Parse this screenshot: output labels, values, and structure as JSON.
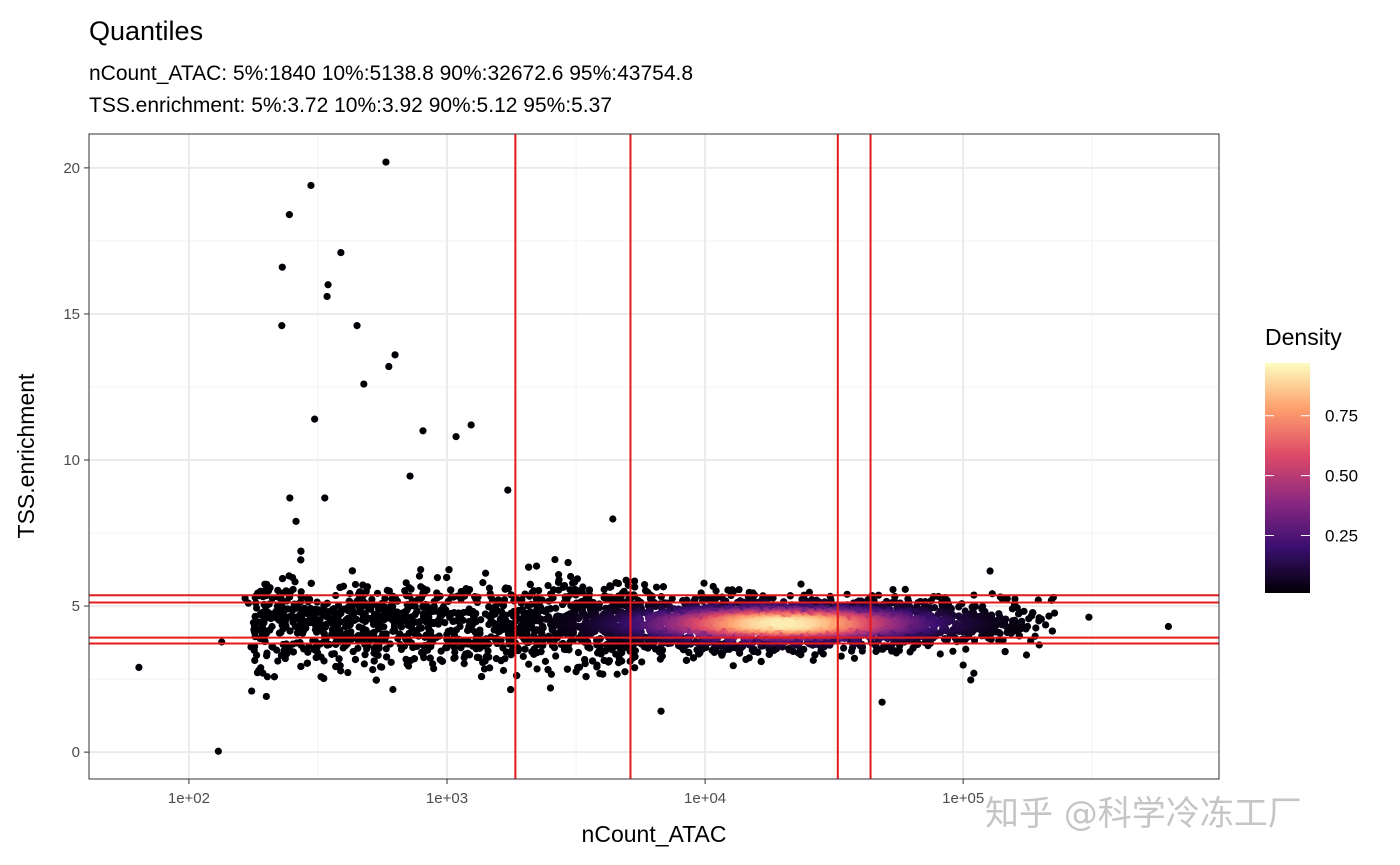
{
  "chart_data": {
    "type": "scatter",
    "title": "Quantiles",
    "subtitle_lines": [
      "nCount_ATAC: 5%:1840 10%:5138.8 90%:32672.6 95%:43754.8",
      "TSS.enrichment: 5%:3.72 10%:3.92 90%:5.12 95%:5.37"
    ],
    "xlabel": "nCount_ATAC",
    "ylabel": "TSS.enrichment",
    "x_scale": "log10",
    "xlim": [
      41,
      980000
    ],
    "ylim": [
      -0.92,
      21.16
    ],
    "x_ticks": [
      100,
      1000,
      10000,
      100000
    ],
    "x_tick_labels": [
      "1e+02",
      "1e+03",
      "1e+04",
      "1e+05"
    ],
    "y_ticks": [
      0,
      5,
      10,
      15,
      20
    ],
    "y_tick_labels": [
      "0",
      "5",
      "10",
      "15",
      "20"
    ],
    "grid": true,
    "vlines": [
      1840,
      5138.8,
      32672.6,
      43754.8
    ],
    "hlines": [
      3.72,
      3.92,
      5.12,
      5.37
    ],
    "line_color": "#e41a1c",
    "density_peak": {
      "x": 20000,
      "y": 4.4
    },
    "points": [
      [
        64,
        2.9
      ],
      [
        130,
        0.03
      ],
      [
        580,
        20.2
      ],
      [
        297,
        19.4
      ],
      [
        245,
        18.4
      ],
      [
        388,
        17.1
      ],
      [
        230,
        16.6
      ],
      [
        346,
        16.0
      ],
      [
        343,
        15.6
      ],
      [
        229,
        14.6
      ],
      [
        448,
        14.6
      ],
      [
        629,
        13.6
      ],
      [
        595,
        13.2
      ],
      [
        476,
        12.6
      ],
      [
        307,
        11.4
      ],
      [
        807,
        11.0
      ],
      [
        1240,
        11.2
      ],
      [
        1084,
        10.8
      ],
      [
        719,
        9.45
      ],
      [
        1720,
        8.97
      ],
      [
        4390,
        7.98
      ],
      [
        246,
        8.7
      ],
      [
        336,
        8.7
      ],
      [
        260,
        7.9
      ],
      [
        624000,
        4.3
      ],
      [
        307000,
        4.62
      ],
      [
        226000,
        4.76
      ],
      [
        197000,
        4.6
      ],
      [
        154000,
        4.2
      ],
      [
        158000,
        5.07
      ],
      [
        110000,
        2.7
      ],
      [
        107000,
        2.47
      ],
      [
        100000,
        2.98
      ],
      [
        6750,
        1.4
      ],
      [
        48500,
        1.71
      ],
      [
        174,
        3.6
      ],
      [
        134,
        3.77
      ],
      [
        175,
        2.09
      ],
      [
        165,
        5.27
      ],
      [
        170,
        5.1
      ],
      [
        210,
        4.3
      ],
      [
        200,
        3.3
      ]
    ],
    "legend": {
      "title": "Density",
      "position": "right",
      "ticks": [
        0.25,
        0.5,
        0.75
      ],
      "tick_labels": [
        "0.25",
        "0.50",
        "0.75"
      ],
      "range": [
        0.01,
        0.97
      ],
      "colormap": "inferno",
      "colors": [
        "#000004",
        "#3b0f70",
        "#8c2981",
        "#de4968",
        "#fe9f6d",
        "#fcfdbf"
      ]
    }
  },
  "watermark": "知乎 @科学冷冻工厂"
}
